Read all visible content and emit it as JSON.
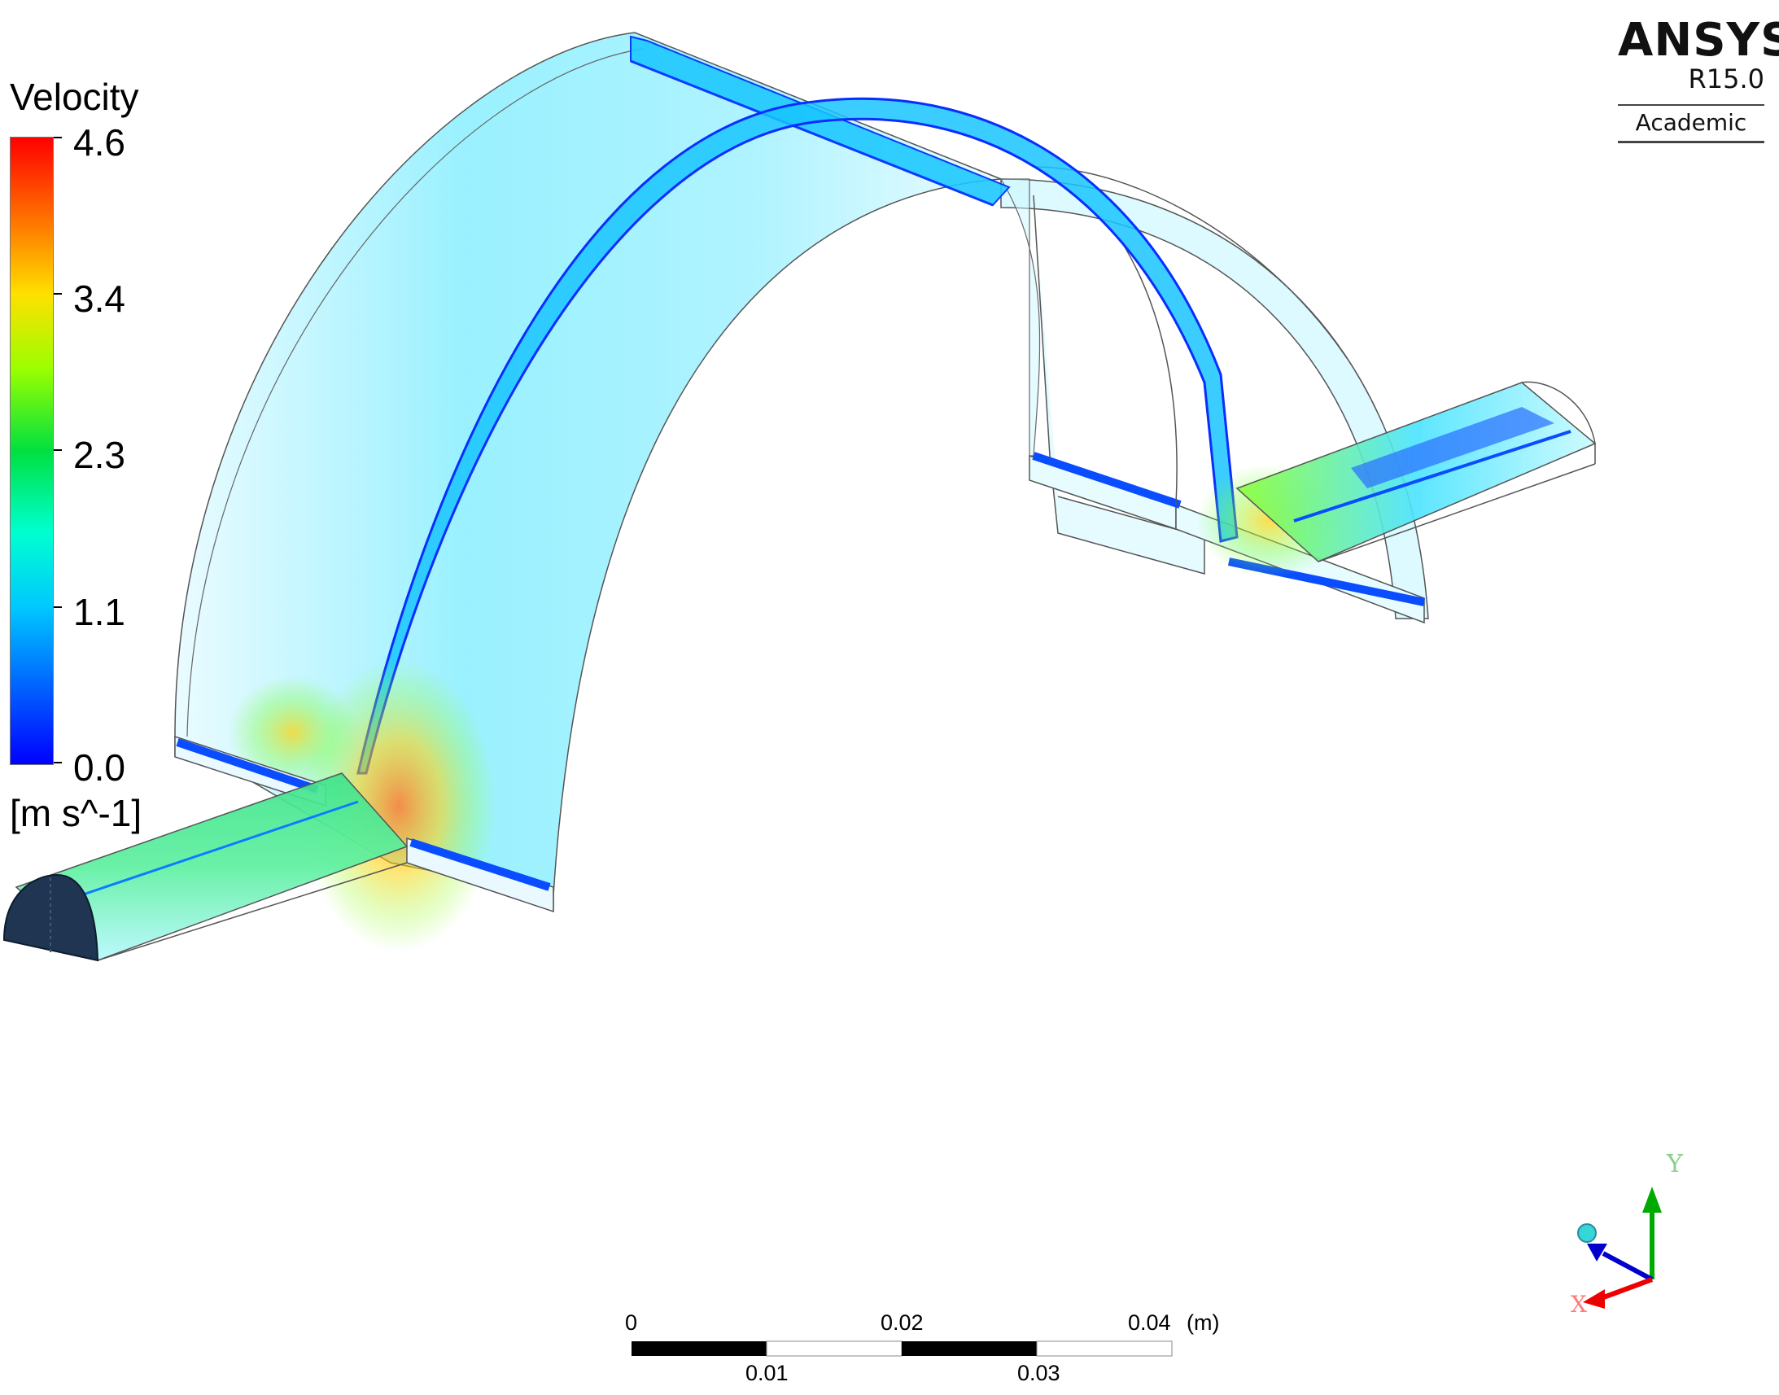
{
  "legend": {
    "title": "Velocity",
    "unit": "[m s^-1]",
    "max": 4.6,
    "min": 0.0,
    "ticks": [
      "4.6",
      "3.4",
      "2.3",
      "1.1",
      "0.0"
    ],
    "colormap": [
      "#ff0000",
      "#ff7f00",
      "#ffff00",
      "#7fff00",
      "#00e040",
      "#00ffd0",
      "#00c8ff",
      "#0060ff",
      "#0000ff"
    ]
  },
  "branding": {
    "name": "ANSYS",
    "version": "R15.0",
    "edition": "Academic"
  },
  "scale_bar": {
    "unit": "(m)",
    "top_labels": [
      "0",
      "0.02",
      "0.04"
    ],
    "bottom_labels": [
      "0.01",
      "0.03"
    ]
  },
  "axes_triad": {
    "x_label": "X",
    "y_label": "Y",
    "x_color": "#ff0000",
    "y_color": "#00aa00",
    "z_color": "#0000cc"
  },
  "colors": {
    "low_velocity_face": "#1f3552",
    "edge": "#555555",
    "fluid_base": "#9ff0ff"
  }
}
